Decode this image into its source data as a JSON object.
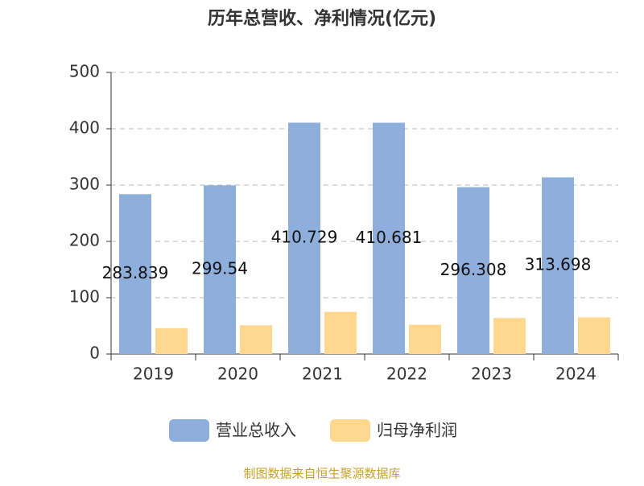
{
  "chart_data": {
    "type": "bar",
    "title": "历年总营收、净利情况(亿元)",
    "categories": [
      "2019",
      "2020",
      "2021",
      "2022",
      "2023",
      "2024"
    ],
    "series": [
      {
        "name": "营业总收入",
        "color": "#8eaedb",
        "values": [
          283.839,
          299.54,
          410.729,
          410.681,
          296.308,
          313.698
        ],
        "show_labels": true
      },
      {
        "name": "归母净利润",
        "color": "#ffd78f",
        "values": [
          46,
          51,
          75,
          52,
          64,
          65
        ],
        "show_labels": false
      }
    ],
    "ylim": [
      0,
      500
    ],
    "yticks": [
      0,
      100,
      200,
      300,
      400,
      500
    ],
    "grid": true,
    "legend": "bottom",
    "source": "制图数据来自恒生聚源数据库"
  }
}
